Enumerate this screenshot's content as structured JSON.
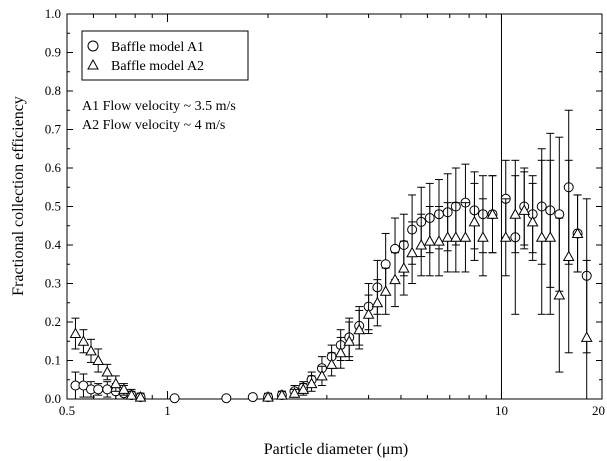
{
  "chart_data": {
    "type": "scatter",
    "xlabel": "Particle diameter (μm)",
    "ylabel": "Fractional collection efficiency",
    "x_scale": "log",
    "xlim": [
      0.5,
      20
    ],
    "ylim": [
      0,
      1.0
    ],
    "x_ticks": [
      0.5,
      1,
      10,
      20
    ],
    "x_tick_labels": [
      "0.5",
      "1",
      "10",
      "20"
    ],
    "y_ticks": [
      0,
      0.1,
      0.2,
      0.3,
      0.4,
      0.5,
      0.6,
      0.7,
      0.8,
      0.9,
      1.0
    ],
    "y_tick_labels": [
      "0.0",
      "0.1",
      "0.2",
      "0.3",
      "0.4",
      "0.5",
      "0.6",
      "0.7",
      "0.8",
      "0.9",
      "1.0"
    ],
    "vertical_line_x": 10,
    "grid": false,
    "legend": {
      "placement": "top-left",
      "entries": [
        {
          "marker": "circle",
          "label": "Baffle model A1"
        },
        {
          "marker": "triangle",
          "label": "Baffle model A2"
        }
      ]
    },
    "annotations": [
      "A1 Flow velocity ~ 3.5 m/s",
      "A2 Flow velocity ~ 4 m/s"
    ],
    "series": [
      {
        "marker": "circle",
        "points": [
          [
            0.53,
            0.035,
            0.035
          ],
          [
            0.56,
            0.035,
            0.03
          ],
          [
            0.59,
            0.025,
            0.02
          ],
          [
            0.62,
            0.025,
            0.015
          ],
          [
            0.66,
            0.025,
            0.02
          ],
          [
            0.7,
            0.02,
            0.02
          ],
          [
            0.74,
            0.015,
            0.02
          ],
          [
            0.78,
            0.01,
            0.015
          ],
          [
            0.83,
            0.005,
            0.01
          ],
          [
            1.05,
            0.002,
            0.0
          ],
          [
            1.5,
            0.002,
            0.0
          ],
          [
            1.8,
            0.005,
            0.0
          ],
          [
            2.0,
            0.005,
            0.01
          ],
          [
            2.2,
            0.01,
            0.01
          ],
          [
            2.4,
            0.02,
            0.015
          ],
          [
            2.55,
            0.03,
            0.015
          ],
          [
            2.7,
            0.05,
            0.02
          ],
          [
            2.9,
            0.08,
            0.03
          ],
          [
            3.1,
            0.11,
            0.03
          ],
          [
            3.3,
            0.14,
            0.04
          ],
          [
            3.5,
            0.16,
            0.05
          ],
          [
            3.75,
            0.19,
            0.05
          ],
          [
            4.0,
            0.24,
            0.06
          ],
          [
            4.25,
            0.29,
            0.07
          ],
          [
            4.5,
            0.35,
            0.08
          ],
          [
            4.8,
            0.39,
            0.08
          ],
          [
            5.1,
            0.4,
            0.08
          ],
          [
            5.4,
            0.44,
            0.09
          ],
          [
            5.75,
            0.46,
            0.09
          ],
          [
            6.1,
            0.47,
            0.09
          ],
          [
            6.5,
            0.48,
            0.09
          ],
          [
            6.9,
            0.485,
            0.1
          ],
          [
            7.3,
            0.5,
            0.1
          ],
          [
            7.8,
            0.51,
            0.1
          ],
          [
            8.3,
            0.49,
            0.1
          ],
          [
            8.8,
            0.48,
            0.1
          ],
          [
            9.4,
            0.48,
            0.1
          ],
          [
            10.3,
            0.52,
            0.1
          ],
          [
            11.0,
            0.42,
            0.2
          ],
          [
            11.7,
            0.5,
            0.1
          ],
          [
            12.4,
            0.48,
            0.1
          ],
          [
            13.2,
            0.5,
            0.15
          ],
          [
            14.0,
            0.49,
            0.2
          ],
          [
            14.9,
            0.48,
            0.2
          ],
          [
            15.9,
            0.55,
            0.2
          ],
          [
            16.9,
            0.43,
            0.1
          ],
          [
            18.0,
            0.32,
            0.2
          ]
        ]
      },
      {
        "marker": "triangle",
        "points": [
          [
            0.53,
            0.17,
            0.04
          ],
          [
            0.56,
            0.15,
            0.03
          ],
          [
            0.59,
            0.125,
            0.03
          ],
          [
            0.62,
            0.1,
            0.03
          ],
          [
            0.66,
            0.07,
            0.02
          ],
          [
            0.7,
            0.04,
            0.02
          ],
          [
            0.74,
            0.025,
            0.015
          ],
          [
            0.78,
            0.01,
            0.01
          ],
          [
            0.83,
            0.005,
            0.01
          ],
          [
            2.0,
            0.005,
            0.0
          ],
          [
            2.2,
            0.01,
            0.01
          ],
          [
            2.4,
            0.015,
            0.01
          ],
          [
            2.55,
            0.025,
            0.015
          ],
          [
            2.7,
            0.04,
            0.02
          ],
          [
            2.9,
            0.06,
            0.025
          ],
          [
            3.1,
            0.09,
            0.03
          ],
          [
            3.3,
            0.12,
            0.04
          ],
          [
            3.5,
            0.15,
            0.05
          ],
          [
            3.75,
            0.18,
            0.05
          ],
          [
            4.0,
            0.22,
            0.05
          ],
          [
            4.25,
            0.25,
            0.06
          ],
          [
            4.5,
            0.28,
            0.06
          ],
          [
            4.8,
            0.31,
            0.07
          ],
          [
            5.1,
            0.34,
            0.07
          ],
          [
            5.4,
            0.38,
            0.08
          ],
          [
            5.75,
            0.4,
            0.08
          ],
          [
            6.1,
            0.41,
            0.09
          ],
          [
            6.5,
            0.41,
            0.09
          ],
          [
            6.9,
            0.42,
            0.09
          ],
          [
            7.3,
            0.42,
            0.09
          ],
          [
            7.8,
            0.42,
            0.09
          ],
          [
            8.3,
            0.46,
            0.1
          ],
          [
            8.8,
            0.42,
            0.1
          ],
          [
            9.4,
            0.48,
            0.1
          ],
          [
            10.3,
            0.42,
            0.1
          ],
          [
            11.0,
            0.48,
            0.1
          ],
          [
            11.7,
            0.49,
            0.1
          ],
          [
            12.4,
            0.46,
            0.1
          ],
          [
            13.2,
            0.42,
            0.2
          ],
          [
            14.0,
            0.42,
            0.2
          ],
          [
            14.9,
            0.27,
            0.2
          ],
          [
            15.9,
            0.37,
            0.25
          ],
          [
            16.9,
            0.43,
            0.1
          ],
          [
            18.0,
            0.16,
            0.2
          ]
        ]
      }
    ]
  }
}
